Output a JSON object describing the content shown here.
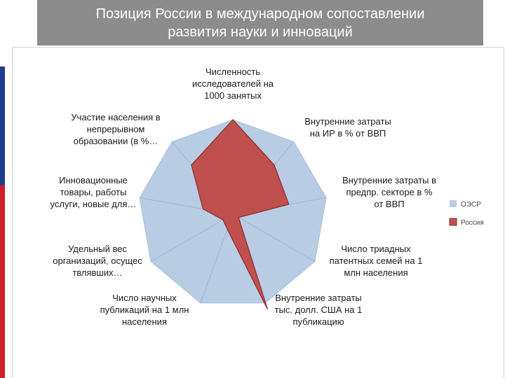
{
  "slide": {
    "title_line1": "Позиция России в международном сопоставлении",
    "title_line2": "развития науки и инноваций",
    "stripe_colors": [
      "#ffffff",
      "#1f3b8f",
      "#d11f26"
    ],
    "title_bar_color": "#8c8c8c"
  },
  "chart_data": {
    "type": "radar",
    "title": "",
    "axes": [
      [
        "Численность",
        "исследователей на",
        "1000 занятых"
      ],
      [
        "Внутренние затраты",
        "на ИР в % от ВВП"
      ],
      [
        "Внутренние затраты в",
        "предпр. секторе в %",
        "от ВВП"
      ],
      [
        "Число триадных",
        "патентных семей на 1",
        "млн населения"
      ],
      [
        "Внутренние затраты",
        "тыс. долл. США на 1",
        "публикацию"
      ],
      [
        "Число научных",
        "публикаций на 1 млн",
        "населения"
      ],
      [
        "Удельный вес",
        "организаций, осущес",
        "твлявших…"
      ],
      [
        "Инновационные",
        "товары, работы",
        "услуги, новые для…"
      ],
      [
        "Участие населения в",
        "непрерывном",
        "образовании (в %…"
      ]
    ],
    "series": [
      {
        "name": "ОЭСР",
        "values": [
          1.0,
          1.0,
          1.0,
          1.0,
          1.0,
          1.0,
          1.0,
          1.0,
          1.0
        ],
        "color": "#b8cce4"
      },
      {
        "name": "Россия",
        "values": [
          1.0,
          0.68,
          0.6,
          0.07,
          1.07,
          0.17,
          0.12,
          0.32,
          0.68
        ],
        "color": "#c0504d"
      }
    ],
    "scale_max": 1.0,
    "legend_position": "right"
  }
}
